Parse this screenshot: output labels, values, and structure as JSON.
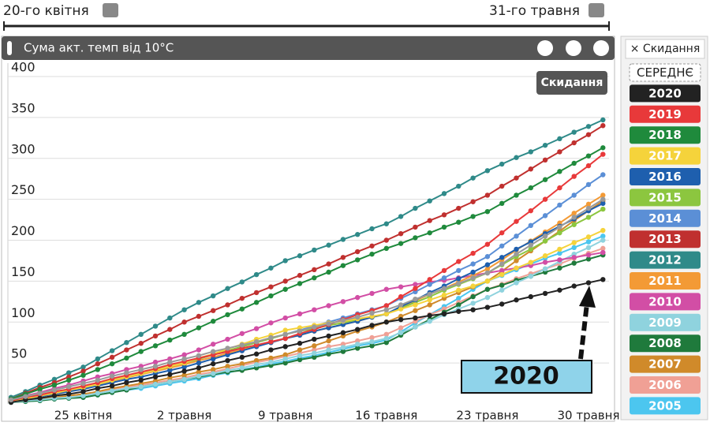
{
  "timeline": {
    "start": "20-го квітня",
    "end": "31-го травня"
  },
  "chart_data": {
    "type": "line",
    "title": "Сума акт. темп від 10°C",
    "reset_button": "Скидання",
    "legend_reset": "× Скидання",
    "annotation": "2020",
    "ylim": [
      0,
      400
    ],
    "yticks": [
      50,
      100,
      150,
      200,
      250,
      300,
      350,
      400
    ],
    "grid": true,
    "legend": "right",
    "categories": [
      null,
      null,
      null,
      null,
      null,
      "25 квітня",
      null,
      null,
      null,
      null,
      null,
      null,
      "2 травня",
      null,
      null,
      null,
      null,
      null,
      null,
      "9 травня",
      null,
      null,
      null,
      null,
      null,
      null,
      "16 травня",
      null,
      null,
      null,
      null,
      null,
      null,
      "23 травня",
      null,
      null,
      null,
      null,
      null,
      null,
      "30 травня",
      null
    ],
    "series": [
      {
        "name": "СЕРЕДНЄ",
        "color": "#9a9a9a",
        "values": [
          5,
          9,
          13,
          17,
          21,
          25,
          29,
          34,
          38,
          42,
          46,
          51,
          55,
          59,
          64,
          68,
          72,
          76,
          81,
          85,
          89,
          94,
          98,
          102,
          106,
          111,
          115,
          121,
          128,
          134,
          141,
          147,
          154,
          160,
          171,
          183,
          194,
          205,
          216,
          228,
          239,
          250
        ]
      },
      {
        "name": "2020",
        "color": "#222222",
        "values": [
          2,
          5,
          7,
          10,
          12,
          15,
          19,
          22,
          26,
          29,
          33,
          36,
          40,
          44,
          49,
          53,
          57,
          61,
          66,
          70,
          74,
          79,
          83,
          87,
          91,
          96,
          100,
          103,
          105,
          108,
          110,
          113,
          115,
          118,
          122,
          127,
          131,
          135,
          139,
          144,
          148,
          152
        ]
      },
      {
        "name": "2019",
        "color": "#e8393a",
        "values": [
          4,
          8,
          11,
          15,
          18,
          22,
          26,
          31,
          35,
          39,
          43,
          48,
          52,
          56,
          60,
          64,
          68,
          72,
          76,
          80,
          86,
          91,
          97,
          103,
          109,
          114,
          120,
          131,
          141,
          152,
          163,
          174,
          184,
          195,
          209,
          223,
          236,
          250,
          264,
          278,
          291,
          305
        ]
      },
      {
        "name": "2018",
        "color": "#1f8a3c",
        "values": [
          6,
          12,
          18,
          23,
          29,
          35,
          42,
          49,
          56,
          64,
          71,
          78,
          85,
          93,
          101,
          109,
          116,
          124,
          132,
          140,
          147,
          154,
          161,
          169,
          176,
          183,
          190,
          196,
          203,
          209,
          216,
          222,
          229,
          235,
          245,
          255,
          264,
          274,
          284,
          294,
          303,
          313
        ]
      },
      {
        "name": "2017",
        "color": "#f5d33b",
        "values": [
          3,
          6,
          10,
          13,
          17,
          20,
          24,
          29,
          33,
          37,
          41,
          46,
          50,
          56,
          61,
          67,
          73,
          79,
          84,
          90,
          93,
          96,
          99,
          101,
          104,
          107,
          110,
          116,
          121,
          127,
          133,
          139,
          144,
          150,
          158,
          166,
          173,
          181,
          189,
          197,
          204,
          212
        ]
      },
      {
        "name": "2016",
        "color": "#1e5fae",
        "values": [
          3,
          6,
          9,
          12,
          15,
          18,
          22,
          26,
          30,
          33,
          37,
          41,
          45,
          50,
          55,
          60,
          65,
          70,
          75,
          80,
          84,
          89,
          93,
          97,
          101,
          106,
          110,
          119,
          127,
          136,
          144,
          153,
          161,
          170,
          179,
          189,
          198,
          208,
          217,
          226,
          236,
          245
        ]
      },
      {
        "name": "2015",
        "color": "#8cc63f",
        "values": [
          4,
          7,
          10,
          14,
          17,
          20,
          24,
          29,
          33,
          37,
          41,
          46,
          50,
          55,
          60,
          65,
          70,
          75,
          80,
          85,
          89,
          92,
          96,
          99,
          103,
          106,
          110,
          117,
          124,
          131,
          139,
          146,
          153,
          160,
          170,
          180,
          189,
          199,
          209,
          219,
          228,
          238
        ]
      },
      {
        "name": "2014",
        "color": "#5b8fd6",
        "values": [
          3,
          6,
          10,
          13,
          17,
          20,
          24,
          29,
          33,
          37,
          41,
          46,
          50,
          55,
          60,
          65,
          70,
          75,
          80,
          85,
          90,
          95,
          100,
          105,
          110,
          115,
          120,
          129,
          137,
          146,
          154,
          163,
          171,
          180,
          193,
          205,
          218,
          230,
          243,
          255,
          268,
          280
        ]
      },
      {
        "name": "2013",
        "color": "#c0302f",
        "values": [
          6,
          13,
          20,
          26,
          33,
          40,
          49,
          57,
          66,
          74,
          83,
          91,
          100,
          107,
          114,
          121,
          129,
          136,
          143,
          150,
          157,
          164,
          171,
          179,
          186,
          193,
          200,
          208,
          216,
          224,
          231,
          239,
          247,
          255,
          266,
          276,
          287,
          298,
          308,
          319,
          329,
          340
        ]
      },
      {
        "name": "2012",
        "color": "#2f8a89",
        "values": [
          8,
          15,
          23,
          30,
          38,
          45,
          55,
          65,
          75,
          85,
          95,
          105,
          115,
          124,
          132,
          141,
          149,
          158,
          166,
          175,
          181,
          188,
          194,
          201,
          207,
          214,
          220,
          229,
          239,
          248,
          257,
          266,
          276,
          285,
          293,
          301,
          308,
          316,
          324,
          332,
          339,
          347
        ]
      },
      {
        "name": "2011",
        "color": "#f39a35",
        "values": [
          3,
          6,
          10,
          13,
          17,
          20,
          24,
          28,
          32,
          36,
          40,
          44,
          48,
          53,
          57,
          62,
          66,
          71,
          75,
          80,
          84,
          89,
          93,
          97,
          101,
          106,
          110,
          118,
          126,
          134,
          141,
          149,
          157,
          165,
          176,
          188,
          199,
          210,
          221,
          233,
          244,
          255
        ]
      },
      {
        "name": "2010",
        "color": "#d24ea5",
        "values": [
          5,
          10,
          14,
          19,
          23,
          28,
          33,
          37,
          42,
          46,
          51,
          55,
          60,
          66,
          73,
          79,
          86,
          92,
          99,
          105,
          110,
          115,
          120,
          125,
          130,
          135,
          140,
          143,
          146,
          149,
          151,
          154,
          157,
          160,
          163,
          166,
          169,
          173,
          176,
          179,
          182,
          185
        ]
      },
      {
        "name": "2009",
        "color": "#8fd3de",
        "values": [
          2,
          4,
          5,
          7,
          8,
          10,
          13,
          16,
          19,
          21,
          24,
          27,
          30,
          34,
          37,
          41,
          44,
          48,
          51,
          55,
          59,
          62,
          66,
          69,
          73,
          76,
          80,
          87,
          94,
          101,
          109,
          116,
          123,
          130,
          139,
          148,
          156,
          165,
          174,
          183,
          191,
          200
        ]
      },
      {
        "name": "2008",
        "color": "#1f7a3c",
        "values": [
          2,
          3,
          4,
          6,
          7,
          8,
          11,
          14,
          17,
          21,
          24,
          27,
          30,
          33,
          36,
          39,
          41,
          44,
          47,
          50,
          54,
          57,
          61,
          64,
          68,
          71,
          75,
          84,
          94,
          103,
          112,
          121,
          131,
          140,
          145,
          151,
          156,
          161,
          166,
          172,
          177,
          182
        ]
      },
      {
        "name": "2007",
        "color": "#d08a2a",
        "values": [
          2,
          4,
          6,
          8,
          10,
          12,
          15,
          19,
          22,
          25,
          28,
          32,
          35,
          39,
          42,
          46,
          49,
          53,
          56,
          60,
          66,
          71,
          77,
          83,
          89,
          94,
          100,
          107,
          114,
          121,
          129,
          136,
          143,
          150,
          162,
          175,
          187,
          199,
          211,
          224,
          236,
          248
        ]
      },
      {
        "name": "2006",
        "color": "#f0a095",
        "values": [
          3,
          5,
          7,
          8,
          10,
          12,
          15,
          18,
          21,
          23,
          26,
          29,
          32,
          36,
          39,
          43,
          47,
          51,
          54,
          58,
          62,
          66,
          70,
          73,
          77,
          81,
          85,
          93,
          101,
          109,
          116,
          124,
          132,
          140,
          146,
          153,
          159,
          165,
          171,
          178,
          184,
          190
        ]
      },
      {
        "name": "2005",
        "color": "#4cc6ef",
        "values": [
          2,
          3,
          4,
          6,
          7,
          8,
          11,
          14,
          17,
          19,
          22,
          25,
          28,
          31,
          35,
          38,
          42,
          45,
          49,
          52,
          56,
          59,
          63,
          67,
          71,
          74,
          78,
          88,
          99,
          109,
          119,
          129,
          140,
          150,
          157,
          164,
          171,
          178,
          184,
          191,
          198,
          205
        ]
      }
    ]
  }
}
